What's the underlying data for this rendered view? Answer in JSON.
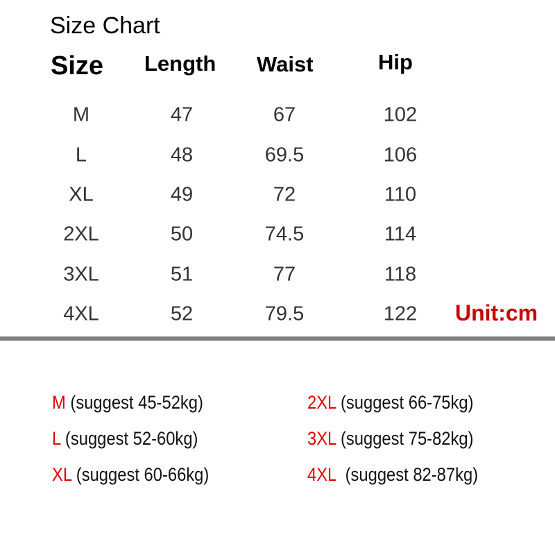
{
  "title": "Size Chart",
  "headers": [
    "Size",
    "Length",
    "Waist",
    "Hip"
  ],
  "rows": [
    [
      "M",
      "47",
      "67",
      "102"
    ],
    [
      "L",
      "48",
      "69.5",
      "106"
    ],
    [
      "XL",
      "49",
      "72",
      "110"
    ],
    [
      "2XL",
      "50",
      "74.5",
      "114"
    ],
    [
      "3XL",
      "51",
      "77",
      "118"
    ],
    [
      "4XL",
      "52",
      "79.5",
      "122"
    ]
  ],
  "unit": "Unit:cm",
  "suggestions": [
    {
      "size": "M",
      "text": " (suggest 45-52kg)"
    },
    {
      "size": "L",
      "text": " (suggest 52-60kg)"
    },
    {
      "size": "XL",
      "text": " (suggest 60-66kg)"
    },
    {
      "size": "2XL",
      "text": " (suggest 66-75kg)"
    },
    {
      "size": "3XL",
      "text": " (suggest 75-82kg)"
    },
    {
      "size": "4XL",
      "text": "  (suggest 82-87kg)"
    }
  ],
  "colors": {
    "size_label": "#e50000",
    "unit": "#cc0000",
    "divider": "#808080"
  }
}
